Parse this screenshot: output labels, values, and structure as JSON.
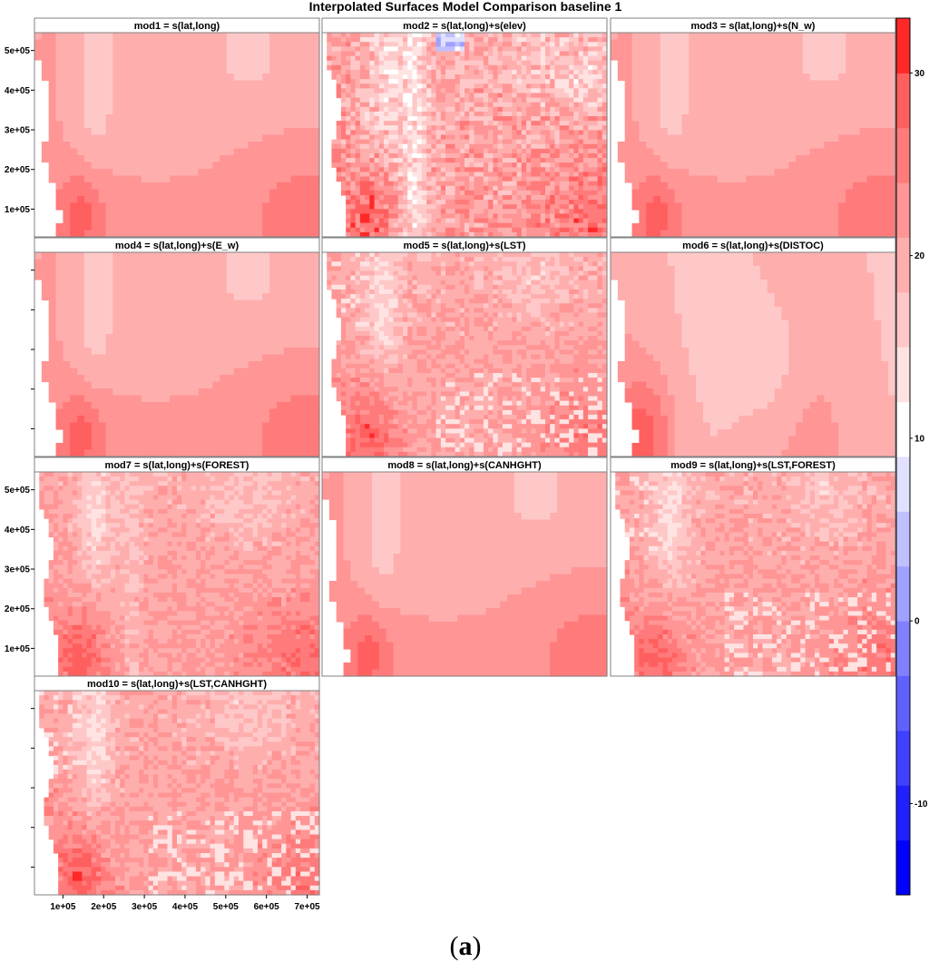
{
  "figure": {
    "title": "Interpolated Surfaces Model Comparison baseline 1",
    "caption_letter": "a",
    "caption_open": "(",
    "caption_close": ")"
  },
  "chart_data": {
    "type": "heatmap",
    "title": "Interpolated Surfaces Model Comparison baseline 1",
    "layout": {
      "columns": 3,
      "rows": 4
    },
    "panels": [
      {
        "id": 1,
        "title": "mod1 = s(lat,long)",
        "style": "smooth",
        "x_labels": false,
        "y_labels": true
      },
      {
        "id": 2,
        "title": "mod2 = s(lat,long)+s(elev)",
        "style": "elev",
        "x_labels": false,
        "y_labels": false
      },
      {
        "id": 3,
        "title": "mod3 = s(lat,long)+s(N_w)",
        "style": "smooth",
        "x_labels": false,
        "y_labels": false
      },
      {
        "id": 4,
        "title": "mod4 = s(lat,long)+s(E_w)",
        "style": "smooth",
        "x_labels": false,
        "y_labels": false
      },
      {
        "id": 5,
        "title": "mod5 = s(lat,long)+s(LST)",
        "style": "lst",
        "x_labels": false,
        "y_labels": false
      },
      {
        "id": 6,
        "title": "mod6 = s(lat,long)+s(DISTOC)",
        "style": "distoc",
        "x_labels": false,
        "y_labels": false
      },
      {
        "id": 7,
        "title": "mod7 = s(lat,long)+s(FOREST)",
        "style": "forest",
        "x_labels": false,
        "y_labels": true
      },
      {
        "id": 8,
        "title": "mod8 = s(lat,long)+s(CANHGHT)",
        "style": "smooth",
        "x_labels": false,
        "y_labels": false
      },
      {
        "id": 9,
        "title": "mod9 = s(lat,long)+s(LST,FOREST)",
        "style": "lst",
        "x_labels": false,
        "y_labels": false
      },
      {
        "id": 10,
        "title": "mod10 = s(lat,long)+s(LST,CANHGHT)",
        "style": "lst",
        "x_labels": true,
        "y_labels": false
      }
    ],
    "x_axis": {
      "ticks": [
        100000,
        200000,
        300000,
        400000,
        500000,
        600000,
        700000
      ],
      "tick_labels": [
        "1e+05",
        "2e+05",
        "3e+05",
        "4e+05",
        "5e+05",
        "6e+05",
        "7e+05"
      ],
      "range": [
        30000,
        730000
      ]
    },
    "y_axis": {
      "ticks": [
        100000,
        200000,
        300000,
        400000,
        500000
      ],
      "tick_labels": [
        "1e+05",
        "2e+05",
        "3e+05",
        "4e+05",
        "5e+05"
      ],
      "range": [
        30000,
        545000
      ]
    },
    "colorbar": {
      "range": [
        -15,
        33
      ],
      "ticks": [
        -10,
        0,
        10,
        20,
        30
      ],
      "tick_labels": [
        "-10",
        "0",
        "10",
        "20",
        "30"
      ],
      "breaks": [
        -15,
        -12,
        -9,
        -6,
        -3,
        0,
        3,
        6,
        9,
        12,
        15,
        18,
        21,
        24,
        27,
        30,
        33
      ],
      "colors": [
        "#0000ff",
        "#2020ff",
        "#4040ff",
        "#6060ff",
        "#8080ff",
        "#a0a0ff",
        "#c0c0ff",
        "#e0e0ff",
        "#ffffff",
        "#ffe3e3",
        "#ffc8c8",
        "#ffaeae",
        "#ff9595",
        "#ff7a7a",
        "#ff5f5f",
        "#ff2828"
      ],
      "low_color": "#0000ff",
      "mid_color": "#ffffff",
      "high_color": "#ff0000",
      "placement": "right"
    },
    "colors": {
      "no_data": "#ffffff",
      "frame": "#808080",
      "strip": "#ffffff"
    }
  }
}
